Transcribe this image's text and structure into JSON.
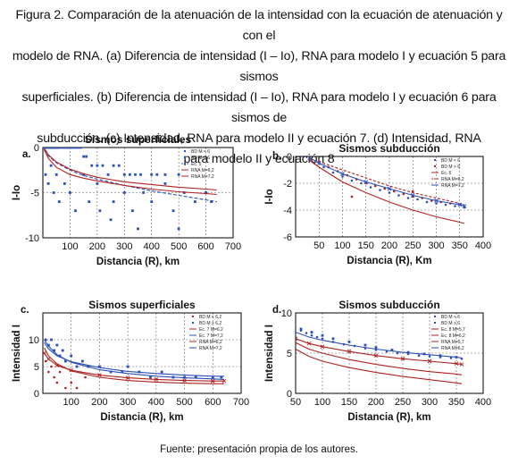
{
  "caption": {
    "lines": [
      "Figura 2. Comparación de la atenuación de la intensidad con la ecuación de atenuación y con el",
      "modelo de RNA. (a) Diferencia de intensidad (I – Io), RNA para modelo I y ecuación 5 para sismos",
      "superficiales. (b) Diferencia de intensidad (I – Io), RNA para modelo I y ecuación 6 para sismos de",
      "subducción. (c) Intensidad, RNA para modelo II y ecuación 7. (d) Intensidad, RNA",
      "para modelo II y ecuación 8"
    ]
  },
  "footer": "Fuente: presentación propia de los autores.",
  "colors": {
    "blue": "#2a4fb8",
    "red": "#b02020",
    "grid": "#666666"
  },
  "chart_data": [
    {
      "panel": "a.",
      "type": "scatter",
      "title": "Sismos superficiales",
      "xlabel": "Distancia (R), km",
      "ylabel": "I-Io",
      "xlim": [
        0,
        700
      ],
      "ylim": [
        -10,
        0
      ],
      "xticks": [
        100,
        200,
        300,
        400,
        500,
        600,
        700
      ],
      "yticks": [
        0,
        -5,
        -10
      ],
      "grid": true,
      "legend_position": "top-right",
      "series": [
        {
          "name": "BD M < 6",
          "kind": "points",
          "color": "#2a4fb8",
          "marker": "square",
          "x": [
            5,
            10,
            15,
            20,
            25,
            30,
            35,
            40,
            45,
            50,
            55,
            60,
            70,
            80,
            90,
            100,
            110,
            120,
            130,
            140,
            150,
            160,
            180,
            200,
            220,
            240,
            260,
            280,
            300,
            320,
            340,
            360,
            400,
            420,
            450,
            500
          ],
          "y": [
            0,
            0,
            0,
            0,
            0,
            0,
            0,
            0,
            0,
            0,
            0,
            0,
            0,
            0,
            0,
            0,
            0,
            0,
            0,
            0,
            -1,
            -1,
            -2,
            -2,
            -2,
            -3,
            -2,
            -2,
            -3,
            -3,
            -3,
            -3,
            -3,
            -3,
            -3,
            -3
          ]
        },
        {
          "name": "BD M > 6",
          "kind": "points",
          "color": "#2a4fb8",
          "marker": "square",
          "x": [
            10,
            20,
            30,
            40,
            50,
            60,
            80,
            100,
            120,
            150,
            170,
            200,
            210,
            250,
            260,
            300,
            330,
            350,
            370,
            400,
            450,
            480,
            500,
            520,
            560,
            600,
            620
          ],
          "y": [
            -3,
            -4,
            -2,
            -5,
            -3,
            -6,
            -4,
            -5,
            -7,
            -3,
            -6,
            -4,
            -7,
            -8,
            -6,
            -5,
            -7,
            -9,
            -5,
            -6,
            -4,
            -7,
            -9,
            -5,
            -6,
            -5,
            -6
          ]
        },
        {
          "name": "Ec. 5",
          "kind": "line",
          "color": "#2a4fb8",
          "dash": "4,2",
          "x": [
            5,
            20,
            50,
            100,
            150,
            200,
            300,
            400,
            500,
            600,
            640
          ],
          "y": [
            -0.3,
            -0.9,
            -1.7,
            -2.5,
            -3.1,
            -3.5,
            -4.2,
            -4.8,
            -5.3,
            -5.8,
            -6.0
          ]
        },
        {
          "name": "RNA M=6,2",
          "kind": "line",
          "color": "#b02020",
          "x": [
            5,
            20,
            50,
            100,
            150,
            200,
            300,
            400,
            500,
            600,
            640
          ],
          "y": [
            -0.2,
            -1.2,
            -2.2,
            -3.0,
            -3.4,
            -3.7,
            -4.2,
            -4.6,
            -4.9,
            -5.1,
            -5.2
          ]
        },
        {
          "name": "RNA M=7,2",
          "kind": "line",
          "color": "#b02020",
          "x": [
            5,
            20,
            50,
            100,
            150,
            200,
            300,
            400,
            500,
            600,
            640
          ],
          "y": [
            -0.1,
            -0.8,
            -1.6,
            -2.4,
            -2.9,
            -3.3,
            -3.8,
            -4.1,
            -4.4,
            -4.6,
            -4.7
          ]
        }
      ]
    },
    {
      "panel": "b.",
      "type": "scatter",
      "title": "Sismos subducción",
      "xlabel": "Distancia (R), Km",
      "ylabel": "I-Io",
      "xlim": [
        0,
        400
      ],
      "ylim": [
        -6,
        0
      ],
      "xticks": [
        50,
        100,
        150,
        200,
        250,
        300,
        350,
        400
      ],
      "yticks": [
        0,
        -2,
        -4,
        -6
      ],
      "grid": true,
      "legend_position": "top-right",
      "series": [
        {
          "name": "BD M < 6",
          "kind": "points",
          "color": "#2a4fb8",
          "marker": "dot",
          "x": [
            40,
            60,
            80,
            100,
            120,
            140,
            160,
            180,
            200,
            220,
            240,
            260,
            280,
            300,
            320,
            340,
            360
          ],
          "y": [
            -0.5,
            -0.8,
            -1.2,
            -1.5,
            -1.8,
            -2.0,
            -2.3,
            -2.5,
            -2.7,
            -2.9,
            -3.1,
            -3.2,
            -3.4,
            -3.5,
            -3.6,
            -3.7,
            -3.8
          ]
        },
        {
          "name": "BD M > 6",
          "kind": "points",
          "color": "#b02020",
          "marker": "dot",
          "x": [
            50,
            70,
            90,
            110,
            130,
            150,
            170,
            190,
            210,
            230,
            250,
            270,
            290,
            310,
            330,
            350,
            120,
            250
          ],
          "y": [
            -0.4,
            -0.8,
            -1.1,
            -1.4,
            -1.7,
            -2.0,
            -2.2,
            -2.4,
            -2.6,
            -2.8,
            -3.0,
            -3.1,
            -3.3,
            -3.4,
            -3.5,
            -3.6,
            -3.0,
            -2.6
          ]
        },
        {
          "name": "Ec. 6",
          "kind": "line",
          "color": "#b02020",
          "x": [
            30,
            50,
            100,
            150,
            200,
            250,
            300,
            350,
            360
          ],
          "y": [
            -0.3,
            -0.8,
            -1.9,
            -2.7,
            -3.4,
            -4.0,
            -4.5,
            -4.9,
            -5.0
          ]
        },
        {
          "name": "RNA M=6,2",
          "kind": "line",
          "color": "#b02020",
          "dash": "3,2",
          "x": [
            30,
            50,
            100,
            150,
            200,
            250,
            300,
            350,
            360
          ],
          "y": [
            -0.2,
            -0.4,
            -1.0,
            -1.6,
            -2.2,
            -2.7,
            -3.1,
            -3.5,
            -3.6
          ]
        },
        {
          "name": "RNA M=7,2",
          "kind": "line",
          "color": "#2a4fb8",
          "marker": "x",
          "x": [
            30,
            50,
            100,
            150,
            200,
            250,
            300,
            350,
            360
          ],
          "y": [
            -0.1,
            -0.5,
            -1.3,
            -1.9,
            -2.4,
            -2.9,
            -3.3,
            -3.6,
            -3.7
          ]
        }
      ]
    },
    {
      "panel": "c.",
      "type": "scatter",
      "title": "Sismos superficiales",
      "xlabel": "Distancia (R), km",
      "ylabel": "Intensidad I",
      "xlim": [
        0,
        700
      ],
      "ylim": [
        0,
        15
      ],
      "xticks": [
        100,
        200,
        300,
        400,
        500,
        600,
        700
      ],
      "yticks": [
        0,
        5,
        10
      ],
      "grid": true,
      "legend_position": "top-right",
      "series": [
        {
          "name": "BD M < 6,2",
          "kind": "points",
          "color": "#b02020",
          "marker": "dot",
          "x": [
            10,
            20,
            30,
            40,
            50,
            60,
            80,
            100,
            120,
            150
          ],
          "y": [
            6,
            4,
            5,
            3,
            2,
            4,
            1,
            2,
            1,
            3
          ]
        },
        {
          "name": "BD M > 6,2",
          "kind": "points",
          "color": "#2a4fb8",
          "marker": "square",
          "x": [
            10,
            20,
            30,
            40,
            50,
            60,
            70,
            80,
            100,
            120,
            140,
            160,
            200,
            240,
            280,
            300,
            340,
            380,
            420,
            460,
            500,
            540,
            600,
            630
          ],
          "y": [
            10,
            9,
            10,
            8,
            9,
            7,
            8,
            6,
            7,
            5,
            6,
            5,
            5,
            4,
            4,
            5,
            4,
            3,
            4,
            3,
            3,
            3,
            3,
            3
          ]
        },
        {
          "name": "Ec. 7 M=6,2",
          "kind": "line",
          "color": "#b02020",
          "x": [
            5,
            20,
            50,
            100,
            200,
            300,
            400,
            500,
            600,
            640
          ],
          "y": [
            8.5,
            7.0,
            5.5,
            4.2,
            3.0,
            2.4,
            2.1,
            1.9,
            1.8,
            1.8
          ]
        },
        {
          "name": "Ec. 7 M=7,2",
          "kind": "line",
          "color": "#2a4fb8",
          "x": [
            5,
            20,
            50,
            100,
            200,
            300,
            400,
            500,
            600,
            640
          ],
          "y": [
            10,
            8.8,
            7.2,
            5.8,
            4.4,
            3.7,
            3.2,
            2.9,
            2.7,
            2.6
          ]
        },
        {
          "name": "RNA M=6,2",
          "kind": "line",
          "color": "#b02020",
          "marker": "x",
          "x": [
            5,
            20,
            50,
            100,
            200,
            300,
            400,
            500,
            600,
            640
          ],
          "y": [
            7.5,
            6.4,
            5.2,
            4.3,
            3.4,
            2.9,
            2.6,
            2.4,
            2.3,
            2.3
          ]
        },
        {
          "name": "RNA M=7,2",
          "kind": "line",
          "color": "#2a4fb8",
          "x": [
            5,
            20,
            50,
            100,
            200,
            300,
            400,
            500,
            600,
            640
          ],
          "y": [
            9.5,
            8.3,
            7.0,
            5.9,
            4.8,
            4.1,
            3.7,
            3.4,
            3.2,
            3.2
          ]
        }
      ]
    },
    {
      "panel": "d.",
      "type": "scatter",
      "title": "Sismos subducción",
      "xlabel": "Distancia (R), km",
      "ylabel": "Intensidad I",
      "xlim": [
        50,
        400
      ],
      "ylim": [
        0,
        10
      ],
      "xticks": [
        50,
        100,
        150,
        200,
        250,
        300,
        350,
        400
      ],
      "yticks": [
        0,
        5,
        10
      ],
      "grid": true,
      "legend_position": "top-right",
      "series": [
        {
          "name": "BD M < 6",
          "kind": "points",
          "color": "#2a4fb8",
          "marker": "dot",
          "x": [
            60,
            70,
            80,
            90,
            100,
            120,
            140,
            160,
            180,
            200,
            220,
            240,
            260,
            280,
            300,
            320,
            340,
            360
          ],
          "y": [
            7.8,
            7.5,
            7.2,
            7.0,
            6.8,
            6.4,
            6.1,
            5.9,
            5.6,
            5.4,
            5.2,
            5.0,
            4.9,
            4.7,
            4.6,
            4.5,
            4.4,
            4.3
          ]
        },
        {
          "name": "BD M > 6",
          "kind": "points",
          "color": "#2a4fb8",
          "marker": "square",
          "x": [
            60,
            80,
            100,
            120,
            150,
            180,
            200,
            230,
            260,
            290,
            320,
            350
          ],
          "y": [
            8.0,
            7.6,
            7.2,
            6.8,
            6.4,
            6.0,
            5.7,
            5.4,
            5.1,
            4.9,
            4.7,
            4.5
          ]
        },
        {
          "name": "Ec. 8 M=5,7",
          "kind": "line",
          "color": "#b02020",
          "x": [
            50,
            75,
            100,
            150,
            200,
            250,
            300,
            350,
            360
          ],
          "y": [
            5.5,
            4.6,
            4.0,
            3.2,
            2.6,
            2.1,
            1.7,
            1.3,
            1.2
          ]
        },
        {
          "name": "Ec. 8 M=6,2",
          "kind": "line",
          "color": "#b02020",
          "x": [
            50,
            75,
            100,
            150,
            200,
            250,
            300,
            350,
            360
          ],
          "y": [
            6.3,
            5.5,
            5.0,
            4.2,
            3.6,
            3.1,
            2.7,
            2.4,
            2.3
          ]
        },
        {
          "name": "RNA M=5,7",
          "kind": "line",
          "color": "#b02020",
          "marker": "x",
          "x": [
            50,
            75,
            100,
            150,
            200,
            250,
            300,
            350,
            360
          ],
          "y": [
            6.8,
            6.2,
            5.8,
            5.2,
            4.7,
            4.3,
            4.0,
            3.7,
            3.6
          ]
        },
        {
          "name": "RNA M=6,2",
          "kind": "line",
          "color": "#2a4fb8",
          "x": [
            50,
            75,
            100,
            150,
            200,
            250,
            300,
            350,
            360
          ],
          "y": [
            7.6,
            7.0,
            6.6,
            6.0,
            5.5,
            5.1,
            4.8,
            4.5,
            4.4
          ]
        }
      ]
    }
  ]
}
